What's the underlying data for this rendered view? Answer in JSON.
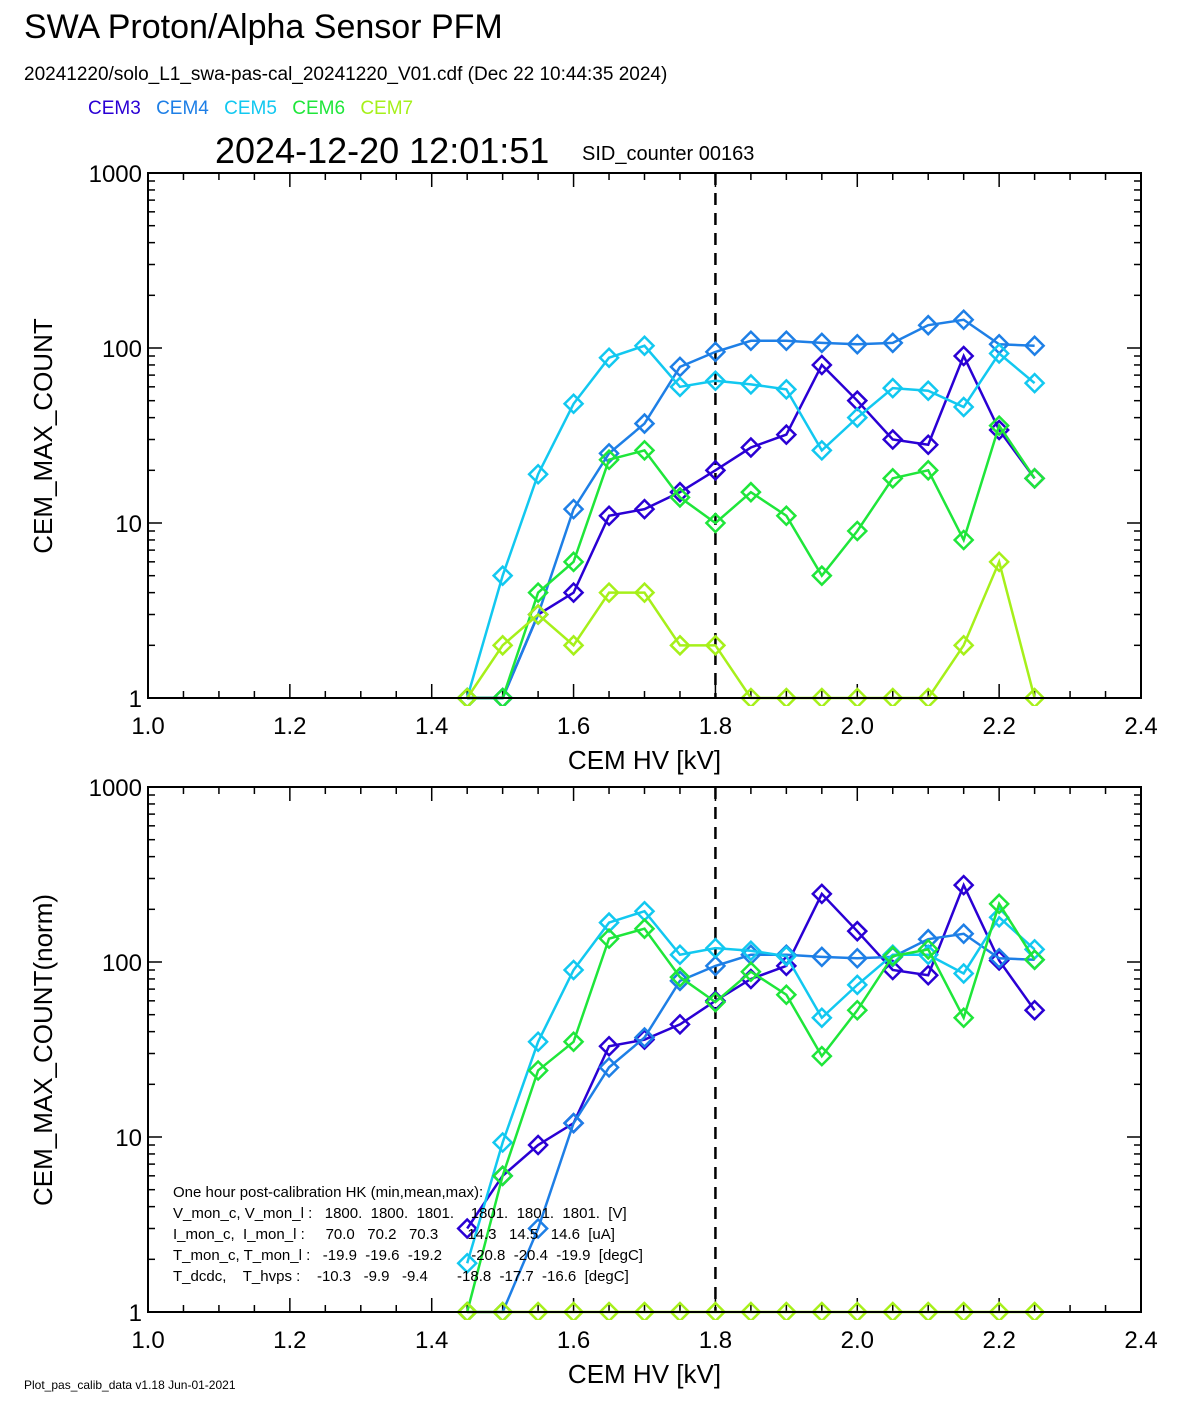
{
  "header": {
    "title": "SWA Proton/Alpha Sensor PFM",
    "subtitle": "20241220/solo_L1_swa-pas-cal_20241220_V01.cdf  (Dec 22 10:44:35 2024)",
    "timestamp": "2024-12-20 12:01:51",
    "sid": "SID_counter 00163"
  },
  "legend": [
    {
      "name": "CEM3",
      "color": "#2a00d4"
    },
    {
      "name": "CEM4",
      "color": "#1e7fe6"
    },
    {
      "name": "CEM5",
      "color": "#12c8f0"
    },
    {
      "name": "CEM6",
      "color": "#1fe63a"
    },
    {
      "name": "CEM7",
      "color": "#a6f01a"
    }
  ],
  "hk": {
    "title": "One hour post-calibration HK (min,mean,max):",
    "rows": [
      "V_mon_c, V_mon_l :   1800.  1800.  1801.    1801.  1801.  1801.  [V]",
      "I_mon_c,  I_mon_l :     70.0   70.2   70.3       14.3   14.5   14.6  [uA]",
      "T_mon_c, T_mon_l :   -19.9  -19.6  -19.2       -20.8  -20.4  -19.9  [degC]",
      "T_dcdc,    T_hvps :    -10.3   -9.9   -9.4       -18.8  -17.7  -16.6  [degC]"
    ]
  },
  "footer": "Plot_pas_calib_data v1.18 Jun-01-2021",
  "chart_data": [
    {
      "type": "line",
      "xlabel": "CEM HV [kV]",
      "ylabel": "CEM_MAX_COUNT",
      "xlim": [
        1.0,
        2.4
      ],
      "ylim": [
        1,
        1000
      ],
      "yscale": "log",
      "xticks": [
        "1.0",
        "1.2",
        "1.4",
        "1.6",
        "1.8",
        "2.0",
        "2.2",
        "2.4"
      ],
      "yticks": [
        "1",
        "10",
        "100",
        "1000"
      ],
      "vline": 1.8,
      "x": [
        1.45,
        1.5,
        1.55,
        1.6,
        1.65,
        1.7,
        1.75,
        1.8,
        1.85,
        1.9,
        1.95,
        2.0,
        2.05,
        2.1,
        2.15,
        2.2,
        2.25
      ],
      "series": [
        {
          "name": "CEM3",
          "values": [
            1,
            1,
            3,
            4,
            11,
            12,
            15,
            20,
            27,
            32,
            80,
            50,
            30,
            28,
            90,
            34,
            18
          ]
        },
        {
          "name": "CEM4",
          "values": [
            1,
            1,
            3,
            12,
            25,
            37,
            78,
            95,
            110,
            110,
            107,
            105,
            107,
            135,
            145,
            105,
            103
          ]
        },
        {
          "name": "CEM5",
          "values": [
            1,
            5,
            19,
            48,
            88,
            103,
            60,
            65,
            62,
            58,
            26,
            40,
            59,
            57,
            46,
            93,
            63
          ]
        },
        {
          "name": "CEM6",
          "values": [
            1,
            1,
            4,
            6,
            23,
            26,
            14,
            10,
            15,
            11,
            5,
            9,
            18,
            20,
            8,
            36,
            18
          ]
        },
        {
          "name": "CEM7",
          "values": [
            1,
            2,
            3,
            2,
            4,
            4,
            2,
            2,
            1,
            1,
            1,
            1,
            1,
            1,
            2,
            6,
            1
          ]
        }
      ]
    },
    {
      "type": "line",
      "xlabel": "CEM HV [kV]",
      "ylabel": "CEM_MAX_COUNT(norm)",
      "xlim": [
        1.0,
        2.4
      ],
      "ylim": [
        1,
        1000
      ],
      "yscale": "log",
      "xticks": [
        "1.0",
        "1.2",
        "1.4",
        "1.6",
        "1.8",
        "2.0",
        "2.2",
        "2.4"
      ],
      "yticks": [
        "1",
        "10",
        "100",
        "1000"
      ],
      "vline": 1.8,
      "x": [
        1.45,
        1.5,
        1.55,
        1.6,
        1.65,
        1.7,
        1.75,
        1.8,
        1.85,
        1.9,
        1.95,
        2.0,
        2.05,
        2.1,
        2.15,
        2.2,
        2.25
      ],
      "series": [
        {
          "name": "CEM3",
          "values": [
            3,
            6,
            9,
            12,
            33,
            36,
            44,
            60,
            80,
            95,
            245,
            150,
            90,
            84,
            275,
            102,
            53
          ]
        },
        {
          "name": "CEM4",
          "values": [
            1,
            1,
            3,
            12,
            25,
            37,
            78,
            95,
            110,
            110,
            107,
            105,
            107,
            135,
            145,
            105,
            103
          ]
        },
        {
          "name": "CEM5",
          "values": [
            1.9,
            9.3,
            35,
            90,
            168,
            195,
            110,
            120,
            116,
            108,
            48,
            74,
            110,
            110,
            86,
            180,
            118
          ]
        },
        {
          "name": "CEM6",
          "values": [
            1,
            6,
            24,
            35,
            136,
            155,
            82,
            59,
            88,
            65,
            29,
            53,
            108,
            118,
            48,
            215,
            103
          ]
        },
        {
          "name": "CEM7",
          "values": [
            1,
            1,
            1,
            1,
            1,
            1,
            1,
            1,
            1,
            1,
            1,
            1,
            1,
            1,
            1,
            1,
            1
          ]
        }
      ]
    }
  ]
}
